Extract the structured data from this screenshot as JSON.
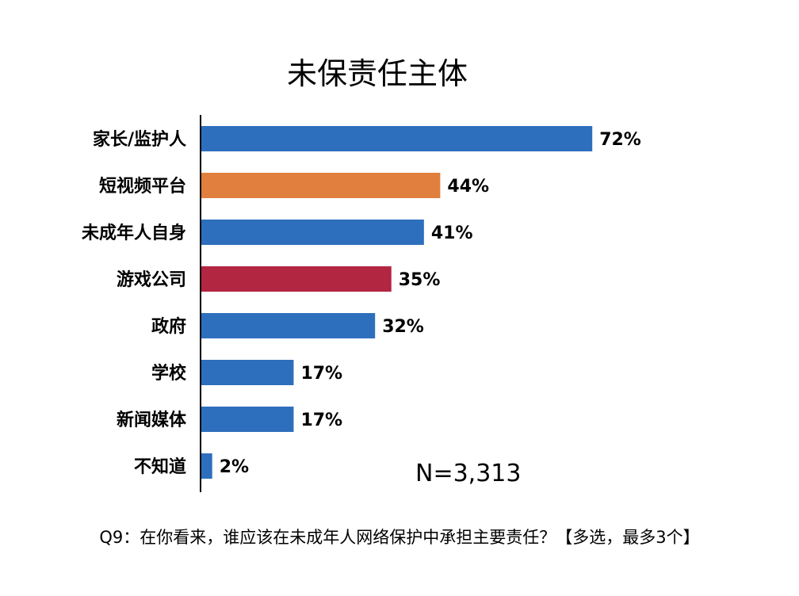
{
  "chart_data": {
    "type": "bar",
    "orientation": "horizontal",
    "title": "未保责任主体",
    "categories": [
      "家长/监护人",
      "短视频平台",
      "未成年人自身",
      "游戏公司",
      "政府",
      "学校",
      "新闻媒体",
      "不知道"
    ],
    "values": [
      72,
      44,
      41,
      35,
      32,
      17,
      17,
      2
    ],
    "value_labels": [
      "72%",
      "44%",
      "41%",
      "35%",
      "32%",
      "17%",
      "17%",
      "2%"
    ],
    "colors": [
      "#2e6fbd",
      "#e07f3e",
      "#2e6fbd",
      "#b22642",
      "#2e6fbd",
      "#2e6fbd",
      "#2e6fbd",
      "#2e6fbd"
    ],
    "xlim": [
      0,
      100
    ],
    "grid": false,
    "legend": "none"
  },
  "sample_note": "N=3,313",
  "footnote": "Q9：在你看来，谁应该在未成年人网络保护中承担主要责任？【多选，最多3个】"
}
